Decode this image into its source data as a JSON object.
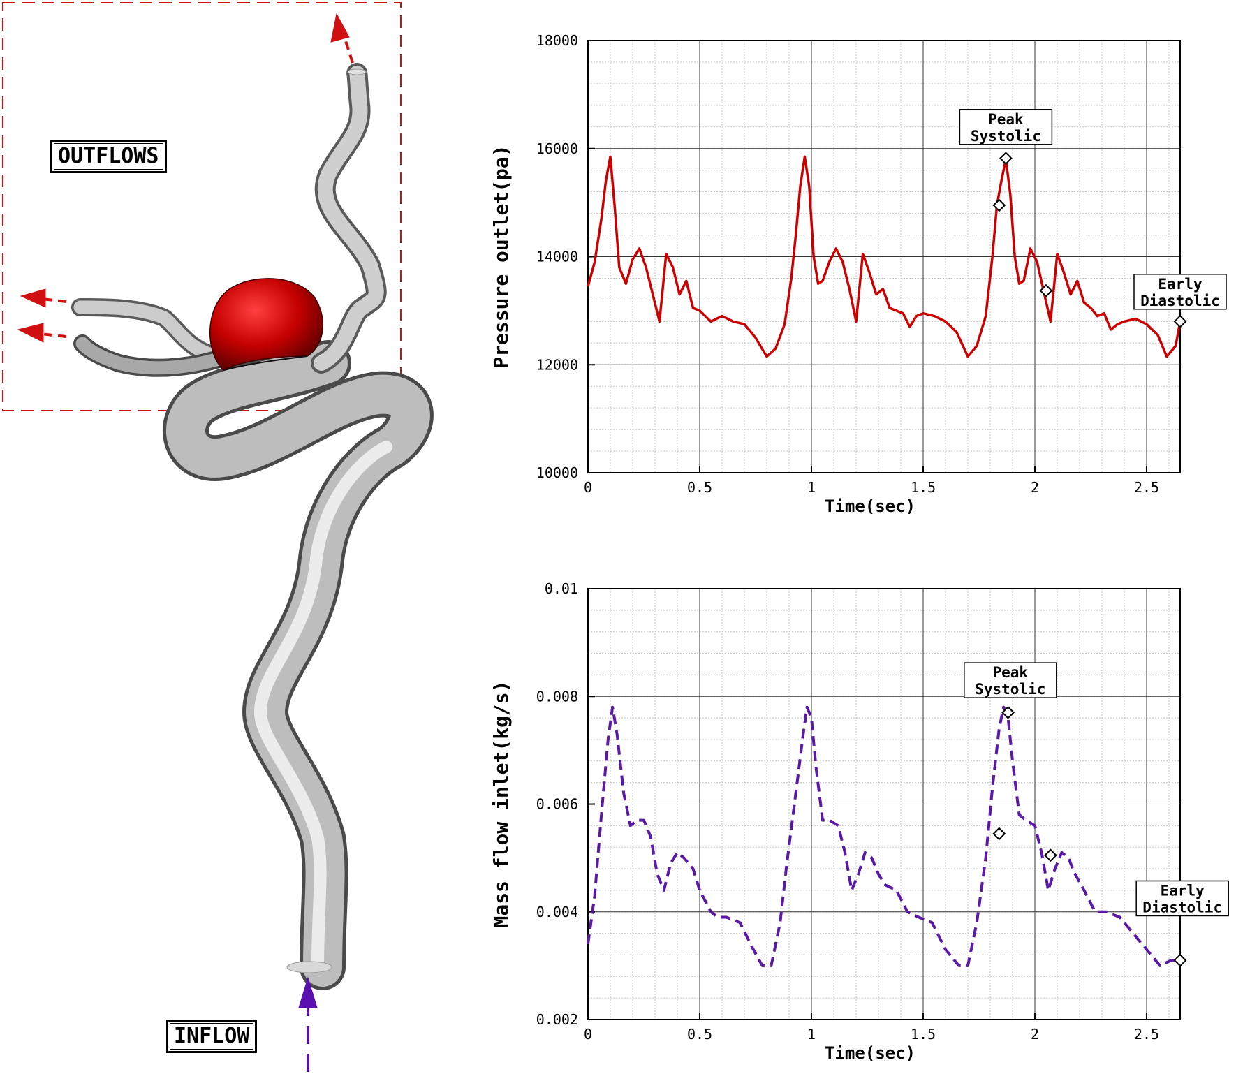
{
  "figure": {
    "labels": {
      "outflows": "OUTFLOWS",
      "inflow": "INFLOW"
    }
  },
  "colors": {
    "pressure": "#cc0000",
    "massflow": "#5a1aa6",
    "vessel": "#bfbfbf",
    "aneurysm": "#c40000",
    "outflow_arrow": "#d01010",
    "inflow_arrow": "#5a0fb0"
  },
  "chart_data": [
    {
      "type": "line",
      "title": "",
      "xlabel": "Time(sec)",
      "ylabel": "Pressure outlet(pa)",
      "xlim": [
        0,
        2.65
      ],
      "ylim": [
        10000,
        18000
      ],
      "xticks": [
        0,
        0.5,
        1,
        1.5,
        2,
        2.5
      ],
      "xtick_labels": [
        "0",
        "0.5",
        "1",
        "1.5",
        "2",
        "2.5"
      ],
      "yticks": [
        10000,
        12000,
        14000,
        16000,
        18000
      ],
      "ytick_labels": [
        "10000",
        "12000",
        "14000",
        "16000",
        "18000"
      ],
      "grid": true,
      "line_style": "solid",
      "series": [
        {
          "x": [
            0,
            0.03,
            0.06,
            0.08,
            0.1,
            0.12,
            0.14,
            0.17,
            0.2,
            0.23,
            0.26,
            0.29,
            0.32,
            0.35,
            0.38,
            0.41,
            0.44,
            0.47,
            0.5,
            0.55,
            0.6,
            0.65,
            0.7,
            0.75,
            0.8,
            0.84,
            0.88,
            0.91,
            0.93,
            0.95,
            0.97,
            0.99,
            1.01,
            1.03,
            1.05,
            1.08,
            1.11,
            1.14,
            1.17,
            1.2,
            1.23,
            1.26,
            1.29,
            1.32,
            1.35,
            1.38,
            1.41,
            1.44,
            1.47,
            1.5,
            1.55,
            1.6,
            1.65,
            1.7,
            1.74,
            1.78,
            1.81,
            1.83,
            1.85,
            1.87,
            1.89,
            1.91,
            1.93,
            1.95,
            1.98,
            2.01,
            2.04,
            2.07,
            2.1,
            2.13,
            2.16,
            2.19,
            2.22,
            2.25,
            2.28,
            2.31,
            2.34,
            2.37,
            2.4,
            2.45,
            2.5,
            2.55,
            2.59,
            2.63,
            2.65
          ],
          "y": [
            13450,
            13900,
            14700,
            15400,
            15850,
            14900,
            13800,
            13500,
            13950,
            14150,
            13800,
            13300,
            12800,
            14050,
            13800,
            13300,
            13550,
            13050,
            13000,
            12800,
            12900,
            12800,
            12750,
            12500,
            12150,
            12300,
            12750,
            13600,
            14400,
            15300,
            15850,
            15300,
            14000,
            13500,
            13550,
            13900,
            14150,
            13900,
            13400,
            12800,
            14050,
            13700,
            13300,
            13400,
            13050,
            13000,
            12950,
            12700,
            12900,
            12950,
            12900,
            12800,
            12600,
            12150,
            12350,
            12900,
            14000,
            14950,
            15400,
            15800,
            15150,
            14000,
            13500,
            13550,
            14150,
            13900,
            13350,
            12800,
            14050,
            13700,
            13300,
            13550,
            13150,
            13050,
            12900,
            12950,
            12650,
            12750,
            12800,
            12850,
            12750,
            12550,
            12150,
            12350,
            12800
          ]
        }
      ],
      "markers": {
        "x": [
          1.84,
          1.87,
          2.05,
          2.65
        ],
        "y": [
          14950,
          15820,
          13370,
          12800
        ]
      },
      "annotations": [
        {
          "text": [
            "Peak",
            "Systolic"
          ],
          "x": 1.87,
          "y": 16400
        },
        {
          "text": [
            "Early",
            "Diastolic"
          ],
          "x": 2.65,
          "y": 13350
        }
      ]
    },
    {
      "type": "line",
      "title": "",
      "xlabel": "Time(sec)",
      "ylabel": "Mass flow inlet(kg/s)",
      "xlim": [
        0,
        2.65
      ],
      "ylim": [
        0.002,
        0.01
      ],
      "xticks": [
        0,
        0.5,
        1,
        1.5,
        2,
        2.5
      ],
      "xtick_labels": [
        "0",
        "0.5",
        "1",
        "1.5",
        "2",
        "2.5"
      ],
      "yticks": [
        0.002,
        0.004,
        0.006,
        0.008,
        0.01
      ],
      "ytick_labels": [
        "0.002",
        "0.004",
        "0.006",
        "0.008",
        "0.01"
      ],
      "grid": true,
      "line_style": "dashed",
      "series": [
        {
          "x": [
            0,
            0.03,
            0.06,
            0.09,
            0.11,
            0.13,
            0.16,
            0.19,
            0.22,
            0.25,
            0.28,
            0.31,
            0.34,
            0.37,
            0.4,
            0.43,
            0.47,
            0.5,
            0.55,
            0.58,
            0.62,
            0.68,
            0.74,
            0.78,
            0.82,
            0.86,
            0.89,
            0.93,
            0.96,
            0.98,
            1.0,
            1.02,
            1.05,
            1.08,
            1.12,
            1.15,
            1.18,
            1.21,
            1.24,
            1.27,
            1.3,
            1.33,
            1.38,
            1.43,
            1.48,
            1.54,
            1.6,
            1.66,
            1.7,
            1.74,
            1.78,
            1.81,
            1.84,
            1.86,
            1.88,
            1.9,
            1.93,
            1.96,
            2.0,
            2.03,
            2.06,
            2.09,
            2.12,
            2.15,
            2.18,
            2.22,
            2.27,
            2.32,
            2.38,
            2.44,
            2.5,
            2.56,
            2.61,
            2.65
          ],
          "y": [
            0.0034,
            0.0043,
            0.0058,
            0.0072,
            0.0078,
            0.0073,
            0.0062,
            0.0056,
            0.0057,
            0.0057,
            0.0054,
            0.0047,
            0.0044,
            0.0049,
            0.0051,
            0.005,
            0.0048,
            0.0044,
            0.004,
            0.0039,
            0.0039,
            0.0038,
            0.0033,
            0.003,
            0.003,
            0.0038,
            0.0049,
            0.0062,
            0.0072,
            0.0078,
            0.0076,
            0.0067,
            0.0057,
            0.0057,
            0.0056,
            0.0051,
            0.0044,
            0.0047,
            0.0051,
            0.005,
            0.0047,
            0.0045,
            0.0044,
            0.004,
            0.0039,
            0.0038,
            0.0033,
            0.003,
            0.003,
            0.0038,
            0.005,
            0.0063,
            0.0074,
            0.0078,
            0.0076,
            0.0068,
            0.0058,
            0.0057,
            0.0056,
            0.0051,
            0.0044,
            0.0048,
            0.0051,
            0.005,
            0.0047,
            0.0044,
            0.004,
            0.004,
            0.0039,
            0.0036,
            0.0033,
            0.003,
            0.0031,
            0.0031
          ]
        }
      ],
      "markers": {
        "x": [
          1.84,
          1.88,
          2.07,
          2.65
        ],
        "y": [
          0.00545,
          0.0077,
          0.00505,
          0.0031
        ]
      },
      "annotations": [
        {
          "text": [
            "Peak",
            "Systolic"
          ],
          "x": 1.89,
          "y": 0.0083
        },
        {
          "text": [
            "Early",
            "Diastolic"
          ],
          "x": 2.66,
          "y": 0.00425
        }
      ]
    }
  ]
}
